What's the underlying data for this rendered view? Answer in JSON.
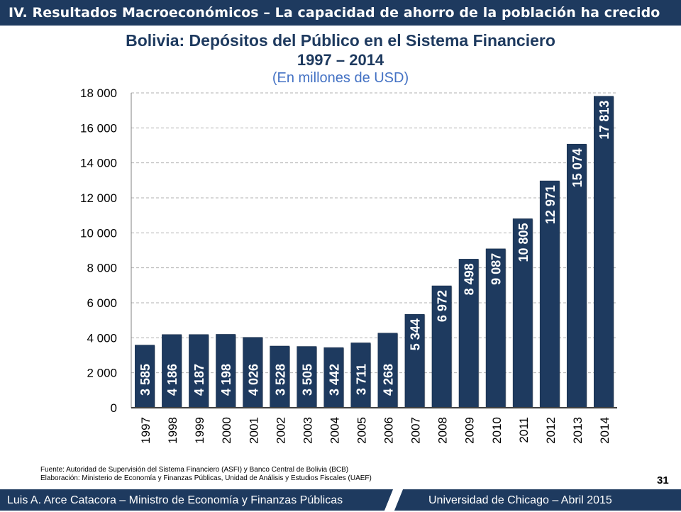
{
  "header": {
    "title": "IV. Resultados Macroeconómicos – La capacidad de ahorro de la población ha crecido"
  },
  "chart_data": {
    "type": "bar",
    "title": "Bolivia: Depósitos del Público en el Sistema Financiero",
    "title_line2": "1997 – 2014",
    "subtitle": "(En millones de USD)",
    "categories": [
      "1997",
      "1998",
      "1999",
      "2000",
      "2001",
      "2002",
      "2003",
      "2004",
      "2005",
      "2006",
      "2007",
      "2008",
      "2009",
      "2010",
      "2011",
      "2012",
      "2013",
      "2014"
    ],
    "values": [
      3585,
      4186,
      4187,
      4198,
      4026,
      3528,
      3505,
      3442,
      3711,
      4268,
      5344,
      6972,
      8498,
      9087,
      10805,
      12971,
      15074,
      17813
    ],
    "data_labels": [
      "3 585",
      "4 186",
      "4 187",
      "4 198",
      "4 026",
      "3 528",
      "3 505",
      "3 442",
      "3 711",
      "4 268",
      "5 344",
      "6 972",
      "8 498",
      "9 087",
      "10 805",
      "12 971",
      "15 074",
      "17 813"
    ],
    "yticks": [
      0,
      2000,
      4000,
      6000,
      8000,
      10000,
      12000,
      14000,
      16000,
      18000
    ],
    "ytick_labels": [
      "0",
      "2 000",
      "4 000",
      "6 000",
      "8 000",
      "10 000",
      "12 000",
      "14 000",
      "16 000",
      "18 000"
    ],
    "ylim": [
      0,
      18000
    ],
    "xlabel": "",
    "ylabel": "",
    "grid": true,
    "bar_color": "#1e3a5f",
    "label_color": "#ffffff"
  },
  "source": {
    "line1": "Fuente: Autoridad de Supervisión del Sistema Financiero (ASFI) y Banco Central de Bolivia (BCB)",
    "line2": "Elaboración: Ministerio de Economía y Finanzas Públicas, Unidad de Análisis y Estudios Fiscales (UAEF)"
  },
  "footer": {
    "left": "Luis A. Arce Catacora – Ministro de Economía y Finanzas Públicas",
    "right": "Universidad de Chicago – Abril 2015",
    "page": "31"
  }
}
